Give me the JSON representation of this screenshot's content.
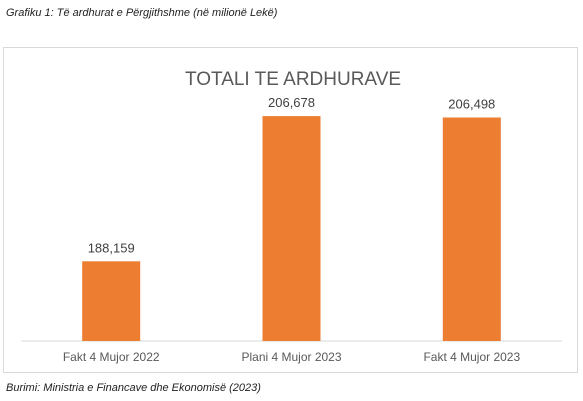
{
  "caption_top": "Grafiku 1: Të ardhurat e Përgjithshme (në milionë Lekë)",
  "caption_bottom": "Burimi: Ministria e Financave dhe Ekonomisë (2023)",
  "chart_data": {
    "type": "bar",
    "title": "TOTALI TE ARDHURAVE",
    "categories": [
      "Fakt 4 Mujor 2022",
      "Plani 4 Mujor 2023",
      "Fakt 4 Mujor 2023"
    ],
    "values": [
      188159,
      206678,
      206498
    ],
    "data_labels": [
      "188,159",
      "206,678",
      "206,498"
    ],
    "bar_color": "#ED7D31",
    "xlabel": "",
    "ylabel": "",
    "ylim": [
      178000,
      210000
    ],
    "grid": false,
    "legend": "none"
  }
}
